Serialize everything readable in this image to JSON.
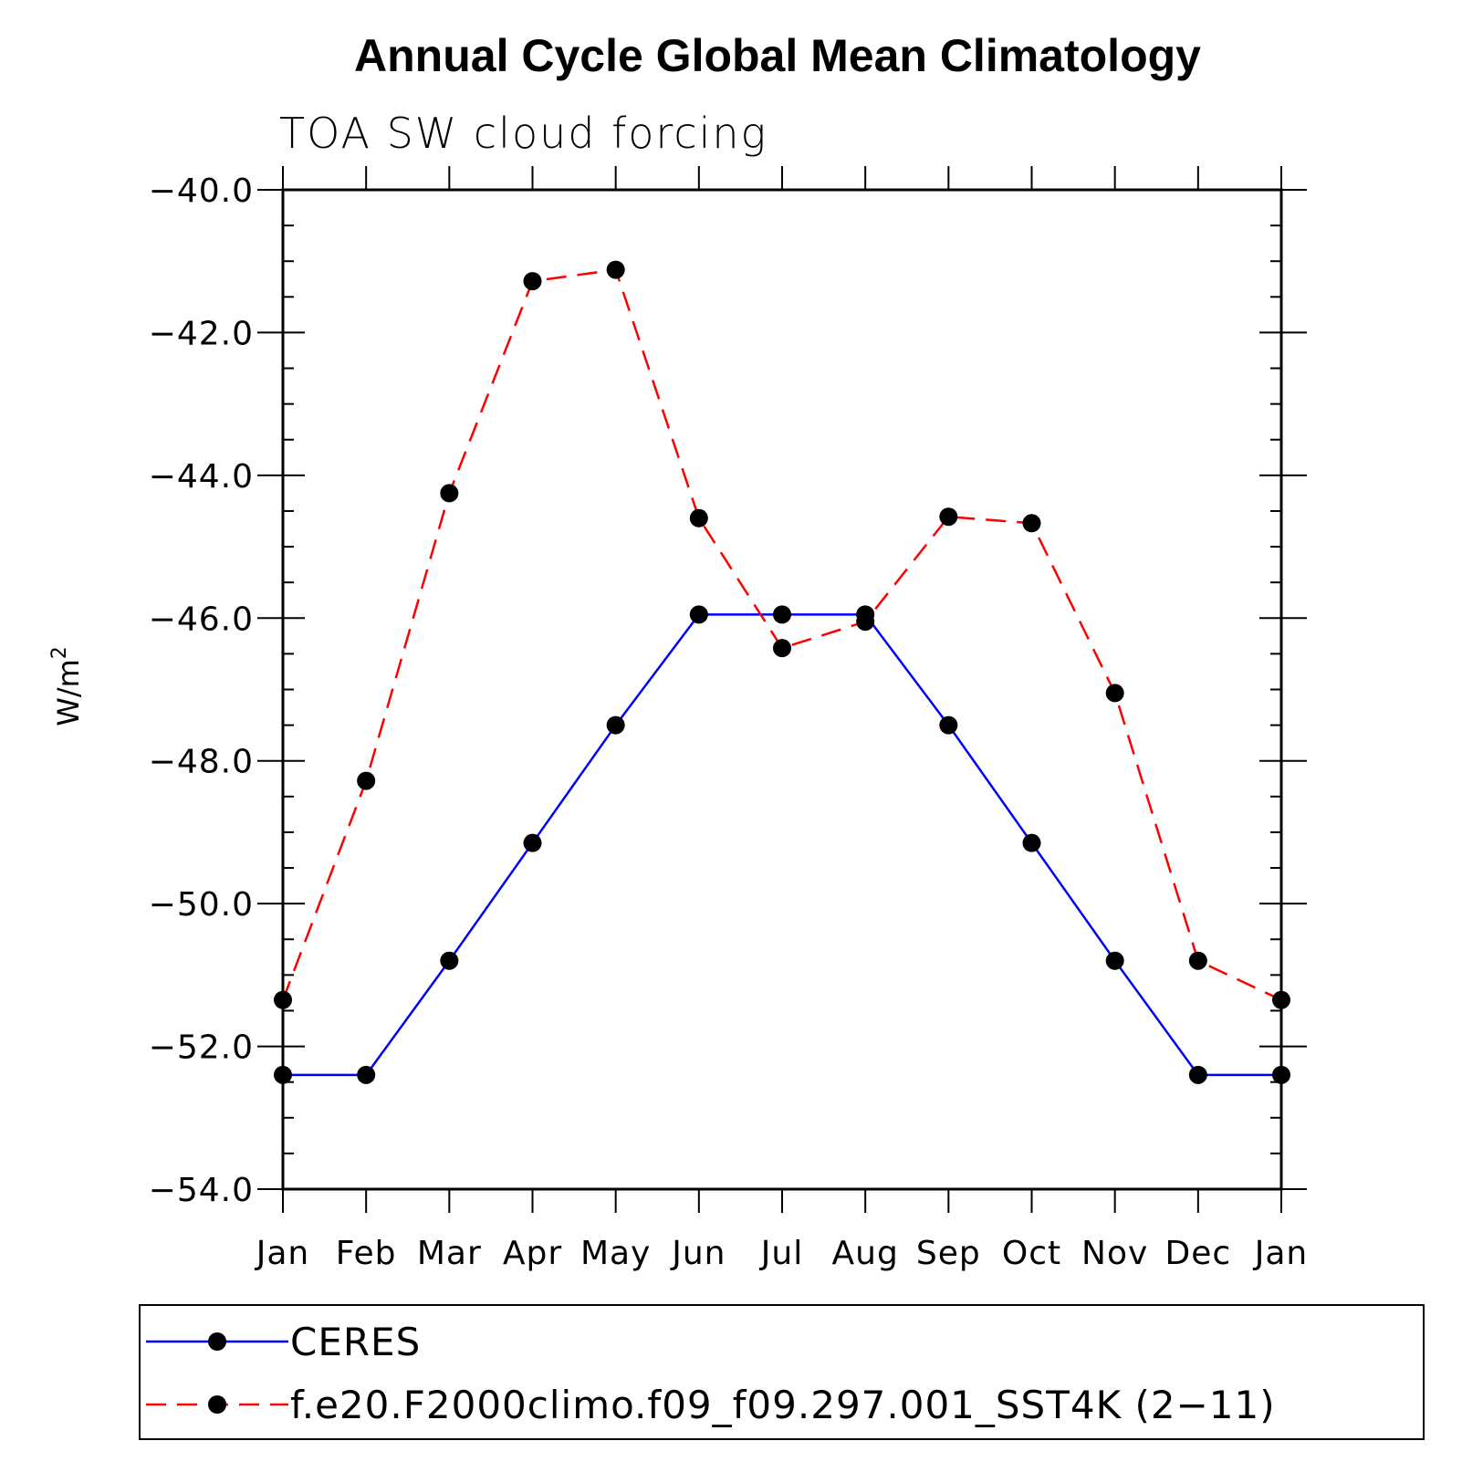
{
  "chart_data": {
    "type": "line",
    "title": "Annual Cycle Global Mean Climatology",
    "subtitle": "TOA SW cloud forcing",
    "ylabel_base": "W/m",
    "ylabel_sup": "2",
    "categories": [
      "Jan",
      "Feb",
      "Mar",
      "Apr",
      "May",
      "Jun",
      "Jul",
      "Aug",
      "Sep",
      "Oct",
      "Nov",
      "Dec",
      "Jan"
    ],
    "ylim": [
      -54.0,
      -40.0
    ],
    "yticks": [
      "-40.0",
      "-42.0",
      "-44.0",
      "-46.0",
      "-48.0",
      "-50.0",
      "-52.0",
      "-54.0"
    ],
    "ytick_values": [
      -40,
      -42,
      -44,
      -46,
      -48,
      -50,
      -52,
      -54
    ],
    "y_minor_step": 0.5,
    "series": [
      {
        "name": "CERES",
        "color": "#0000ff",
        "dash": "solid",
        "values": [
          -52.4,
          -52.4,
          -50.8,
          -49.15,
          -47.5,
          -45.95,
          -45.95,
          -45.95,
          -47.5,
          -49.15,
          -50.8,
          -52.4,
          -52.4
        ]
      },
      {
        "name": "f.e20.F2000climo.f09_f09.297.001_SST4K (2−11)",
        "color": "#ff0000",
        "dash": "dashed",
        "values": [
          -51.35,
          -48.28,
          -44.25,
          -41.28,
          -41.12,
          -44.6,
          -46.42,
          -46.05,
          -44.58,
          -44.67,
          -47.05,
          -50.8,
          -51.35
        ]
      }
    ],
    "legend_position": "bottom"
  }
}
